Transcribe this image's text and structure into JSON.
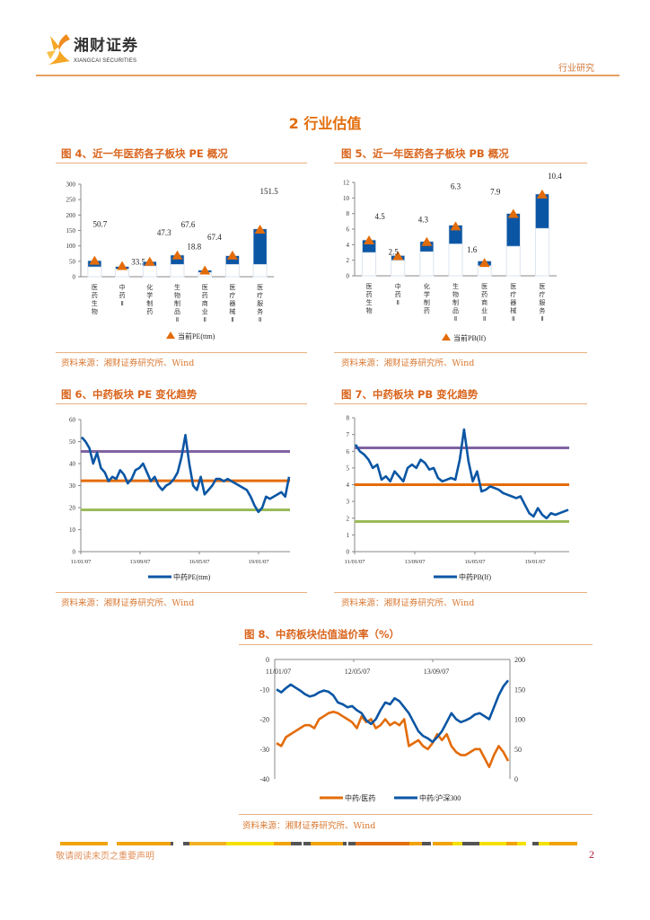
{
  "header": {
    "logo_cn": "湘财证券",
    "logo_en": "XIANGCAI SECURITIES",
    "category": "行业研究"
  },
  "section_title": "2 行业估值",
  "figures": {
    "fig4": {
      "title": "图 4、近一年医药各子板块 PE 概况",
      "source": "资料来源：湘财证券研究所、Wind"
    },
    "fig5": {
      "title": "图 5、近一年医药各子板块 PB 概况",
      "source": "资料来源：湘财证券研究所、Wind"
    },
    "fig6": {
      "title": "图 6、中药板块 PE 变化趋势",
      "source": "资料来源：湘财证券研究所、Wind"
    },
    "fig7": {
      "title": "图 7、中药板块 PB 变化趋势",
      "source": "资料来源：湘财证券研究所、Wind"
    },
    "fig8": {
      "title": "图 8、中药板块估值溢价率（%）",
      "source": "资料来源：湘财证券研究所、Wind"
    }
  },
  "colors": {
    "bar": "#0b56a4",
    "marker": "#e36c0a",
    "line_blue": "#0b56a4",
    "line_orange": "#e36c0a",
    "purple": "#8064a2",
    "green": "#9bbb59"
  },
  "chart_data": [
    {
      "type": "bar",
      "id": "fig4",
      "categories": [
        "医药生物",
        "中药Ⅱ",
        "化学制药",
        "生物制品Ⅱ",
        "医药商业Ⅱ",
        "医疗器械Ⅱ",
        "医疗服务Ⅱ"
      ],
      "range_low": [
        32,
        25,
        35,
        40,
        14,
        40,
        40
      ],
      "range_high": [
        52,
        33,
        49,
        70,
        21,
        68,
        155
      ],
      "current": [
        50.7,
        33.5,
        47.3,
        67.6,
        18.8,
        67.4,
        151.5
      ],
      "current_labels": [
        "50.7",
        "33.5",
        "47.3",
        "67.6",
        "18.8",
        "67.4",
        "151.5"
      ],
      "legend": "当前PE(ttm)",
      "ylim": [
        0,
        300
      ],
      "yticks": [
        "0",
        "50",
        "100",
        "150",
        "200",
        "250",
        "300"
      ]
    },
    {
      "type": "bar",
      "id": "fig5",
      "categories": [
        "医药生物",
        "中药Ⅱ",
        "化学制药",
        "生物制品Ⅱ",
        "医药商业Ⅱ",
        "医疗器械Ⅱ",
        "医疗服务Ⅱ"
      ],
      "range_low": [
        3.0,
        2.0,
        3.1,
        4.1,
        1.3,
        3.8,
        6.1
      ],
      "range_high": [
        4.6,
        2.6,
        4.4,
        6.5,
        1.9,
        8.0,
        10.5
      ],
      "current": [
        4.5,
        2.5,
        4.3,
        6.3,
        1.6,
        7.9,
        10.4
      ],
      "current_labels": [
        "4.5",
        "2.5",
        "4.3",
        "6.3",
        "1.6",
        "7.9",
        "10.4"
      ],
      "legend": "当前PB(lf)",
      "ylim": [
        0,
        12
      ],
      "yticks": [
        "0",
        "2",
        "4",
        "6",
        "8",
        "10",
        "12"
      ]
    },
    {
      "type": "line",
      "id": "fig6",
      "series": [
        {
          "name": "中药PE(ttm)",
          "values": [
            52,
            50,
            47,
            40,
            45,
            38,
            36,
            32,
            34,
            33,
            37,
            35,
            31,
            33,
            37,
            38,
            40,
            36,
            32,
            34,
            30,
            28,
            30,
            31,
            33,
            36,
            43,
            53,
            40,
            30,
            28,
            34,
            26,
            28,
            30,
            33,
            33,
            32,
            33,
            32,
            31,
            30,
            29,
            28,
            25,
            21,
            18,
            20,
            25,
            24,
            25,
            26,
            27,
            25,
            34
          ]
        }
      ],
      "reference_lines": [
        45.5,
        32.2,
        19
      ],
      "xticks": [
        "11/01/07",
        "13/09/07",
        "16/05/07",
        "19/01/07"
      ],
      "ylim": [
        0,
        60
      ],
      "yticks": [
        "0",
        "10",
        "20",
        "30",
        "40",
        "50",
        "60"
      ]
    },
    {
      "type": "line",
      "id": "fig7",
      "series": [
        {
          "name": "中药PB(lf)",
          "values": [
            6.4,
            6.0,
            5.8,
            5.5,
            5.0,
            5.2,
            4.3,
            4.5,
            4.2,
            4.8,
            4.5,
            4.2,
            5.0,
            5.2,
            5.0,
            5.5,
            5.3,
            4.9,
            5.0,
            4.4,
            4.2,
            4.3,
            4.4,
            4.3,
            5.5,
            7.3,
            5.4,
            4.2,
            4.8,
            3.6,
            3.7,
            3.9,
            3.8,
            3.7,
            3.5,
            3.4,
            3.3,
            3.2,
            3.3,
            2.8,
            2.3,
            2.1,
            2.6,
            2.2,
            2.0,
            2.3,
            2.2,
            2.3,
            2.4,
            2.5
          ]
        }
      ],
      "reference_lines": [
        6.2,
        4.0,
        1.8
      ],
      "xticks": [
        "11/01/07",
        "13/09/07",
        "16/05/07",
        "19/01/07"
      ],
      "ylim": [
        0,
        8
      ],
      "yticks": [
        "0",
        "1",
        "2",
        "3",
        "4",
        "5",
        "6",
        "7",
        "8"
      ]
    },
    {
      "type": "line",
      "id": "fig8",
      "series": [
        {
          "name": "中药/医药",
          "axis": "left",
          "values": [
            -28,
            -29,
            -26,
            -25,
            -24,
            -23,
            -22,
            -22,
            -23,
            -20,
            -19,
            -18,
            -17.5,
            -18,
            -19,
            -20,
            -21,
            -23,
            -19,
            -21,
            -20,
            -23,
            -22,
            -20,
            -22,
            -21,
            -22,
            -20,
            -29,
            -28,
            -27,
            -29,
            -30,
            -28,
            -25,
            -27,
            -25,
            -29,
            -31,
            -32,
            -32,
            -31,
            -30,
            -30,
            -33,
            -36,
            -32,
            -29,
            -31,
            -34
          ]
        },
        {
          "name": "中药/沪深300",
          "axis": "right",
          "values": [
            150,
            145,
            152,
            158,
            153,
            148,
            142,
            138,
            140,
            145,
            148,
            146,
            140,
            128,
            125,
            120,
            122,
            115,
            110,
            98,
            92,
            100,
            115,
            128,
            125,
            135,
            130,
            120,
            110,
            95,
            80,
            72,
            68,
            62,
            70,
            80,
            95,
            110,
            100,
            95,
            98,
            102,
            108,
            110,
            105,
            100,
            120,
            140,
            155,
            165
          ]
        }
      ],
      "xticks": [
        "11/01/07",
        "12/05/07",
        "13/09/07"
      ],
      "ylim_left": [
        -40,
        0
      ],
      "yticks_left": [
        "0",
        "-10",
        "-20",
        "-30",
        "-40"
      ],
      "ylim_right": [
        0,
        200
      ],
      "yticks_right": [
        "200",
        "150",
        "100",
        "50",
        "0"
      ]
    }
  ],
  "footer": {
    "disclaimer": "敬请阅读末页之重要声明",
    "page_number": "2"
  }
}
